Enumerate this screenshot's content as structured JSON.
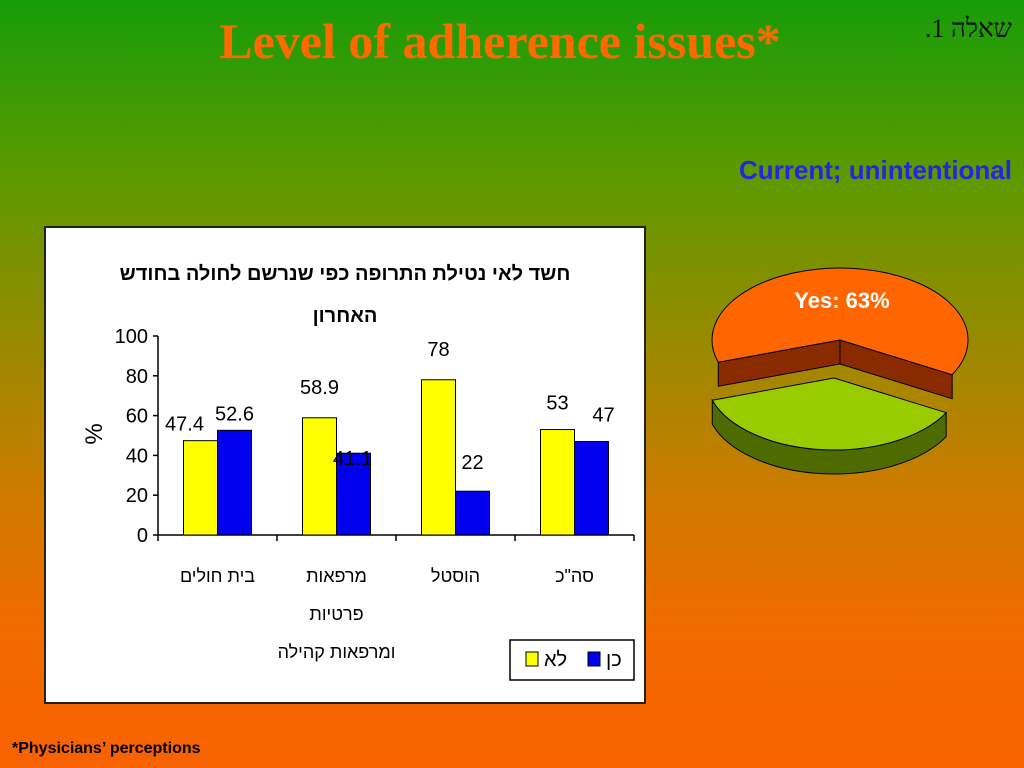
{
  "title": "Level of adherence issues*",
  "question_label": "שאלה 1.",
  "subtitle": "Current; unintentional",
  "footnote": "*Physicians’ perceptions",
  "colors": {
    "series_no": "#ffff00",
    "series_yes": "#0000ee",
    "pie_yes": "#ff6600",
    "pie_no": "#99cc00",
    "subtitle": "#2525e0",
    "title": "#ff6a00"
  },
  "chart_data": [
    {
      "type": "bar",
      "title": "חשד לאי נטילת התרופה כפי שנרשם לחולה בחודש האחרון",
      "title_lines": [
        "חשד לאי נטילת התרופה כפי שנרשם לחולה בחודש",
        "האחרון"
      ],
      "ylabel": "%",
      "xlabel": "",
      "ylim": [
        0,
        100
      ],
      "yticks": [
        0,
        20,
        40,
        60,
        80,
        100
      ],
      "grid": false,
      "legend_position": "bottom-right",
      "categories": [
        [
          "בית חולים"
        ],
        [
          "מרפאות",
          "פרטיות",
          "ומרפאות קהילה"
        ],
        [
          "הוסטל"
        ],
        [
          "סה\"כ"
        ]
      ],
      "series": [
        {
          "name": "לא",
          "values": [
            47.4,
            58.9,
            78,
            53
          ]
        },
        {
          "name": "כן",
          "values": [
            52.6,
            41.1,
            22,
            47
          ]
        }
      ],
      "data_labels": [
        [
          "47.4",
          "58.9",
          "78",
          "53"
        ],
        [
          "52.6",
          "41.1",
          "22",
          "47"
        ]
      ]
    },
    {
      "type": "pie",
      "slices": [
        {
          "label": "Yes: 63%",
          "value": 63
        },
        {
          "label": "",
          "value": 37
        }
      ]
    }
  ]
}
